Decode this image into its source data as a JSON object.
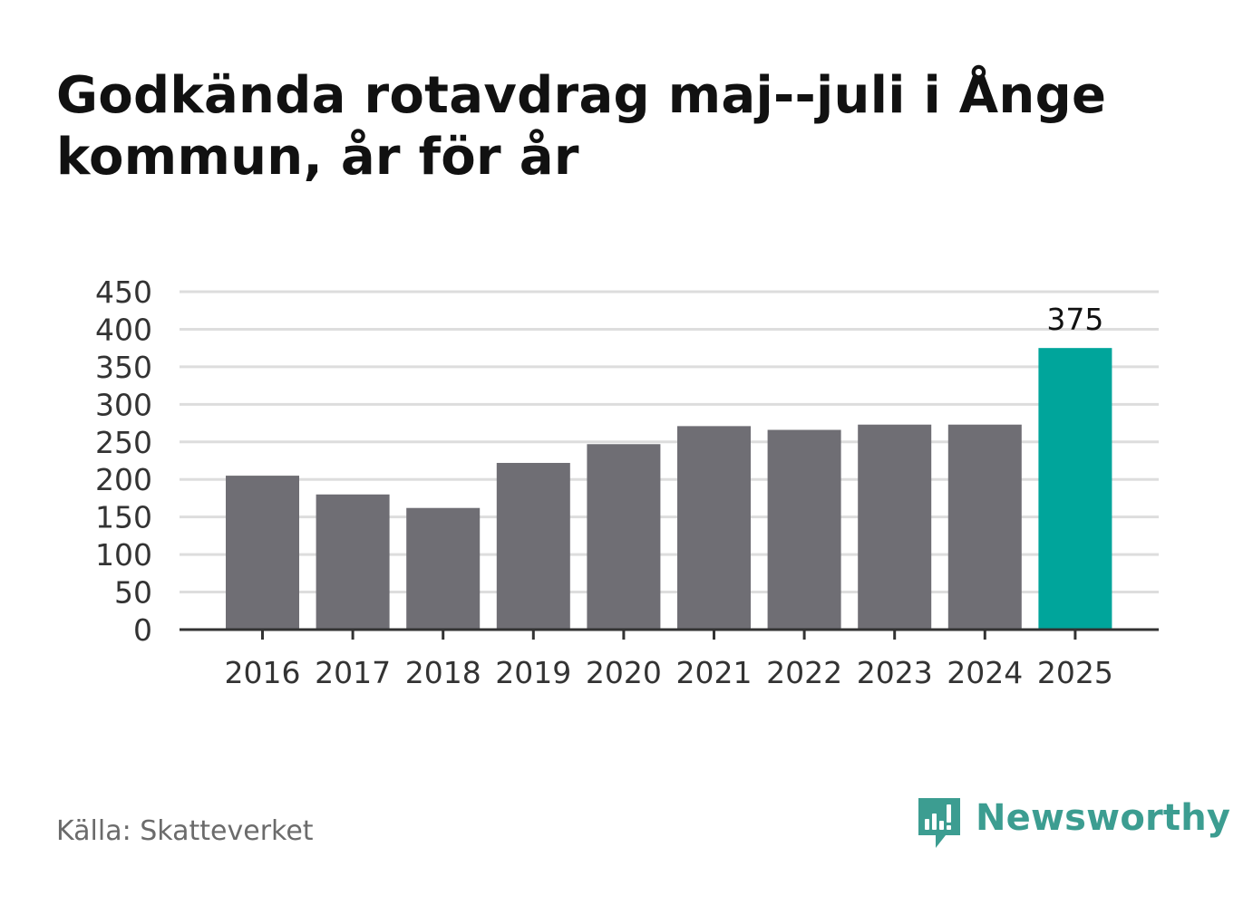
{
  "chart_data": {
    "type": "bar",
    "title": "Godkända rotavdrag maj--juli i Ånge kommun, år för år",
    "categories": [
      "2016",
      "2017",
      "2018",
      "2019",
      "2020",
      "2021",
      "2022",
      "2023",
      "2024",
      "2025"
    ],
    "values": [
      205,
      180,
      162,
      222,
      247,
      271,
      266,
      273,
      273,
      375
    ],
    "highlight_index": 9,
    "highlight_label": "375",
    "ylim": [
      0,
      450
    ],
    "yticks": [
      0,
      50,
      100,
      150,
      200,
      250,
      300,
      350,
      400,
      450
    ],
    "grid": true,
    "xlabel": "",
    "ylabel": "",
    "colors": {
      "bar": "#6f6e74",
      "highlight": "#00a59b",
      "grid": "#dddddd",
      "axis": "#333333"
    }
  },
  "source": "Källa: Skatteverket",
  "brand": {
    "name": "Newsworthy",
    "icon": "newsworthy-logo-icon",
    "color": "#3c9d91"
  }
}
